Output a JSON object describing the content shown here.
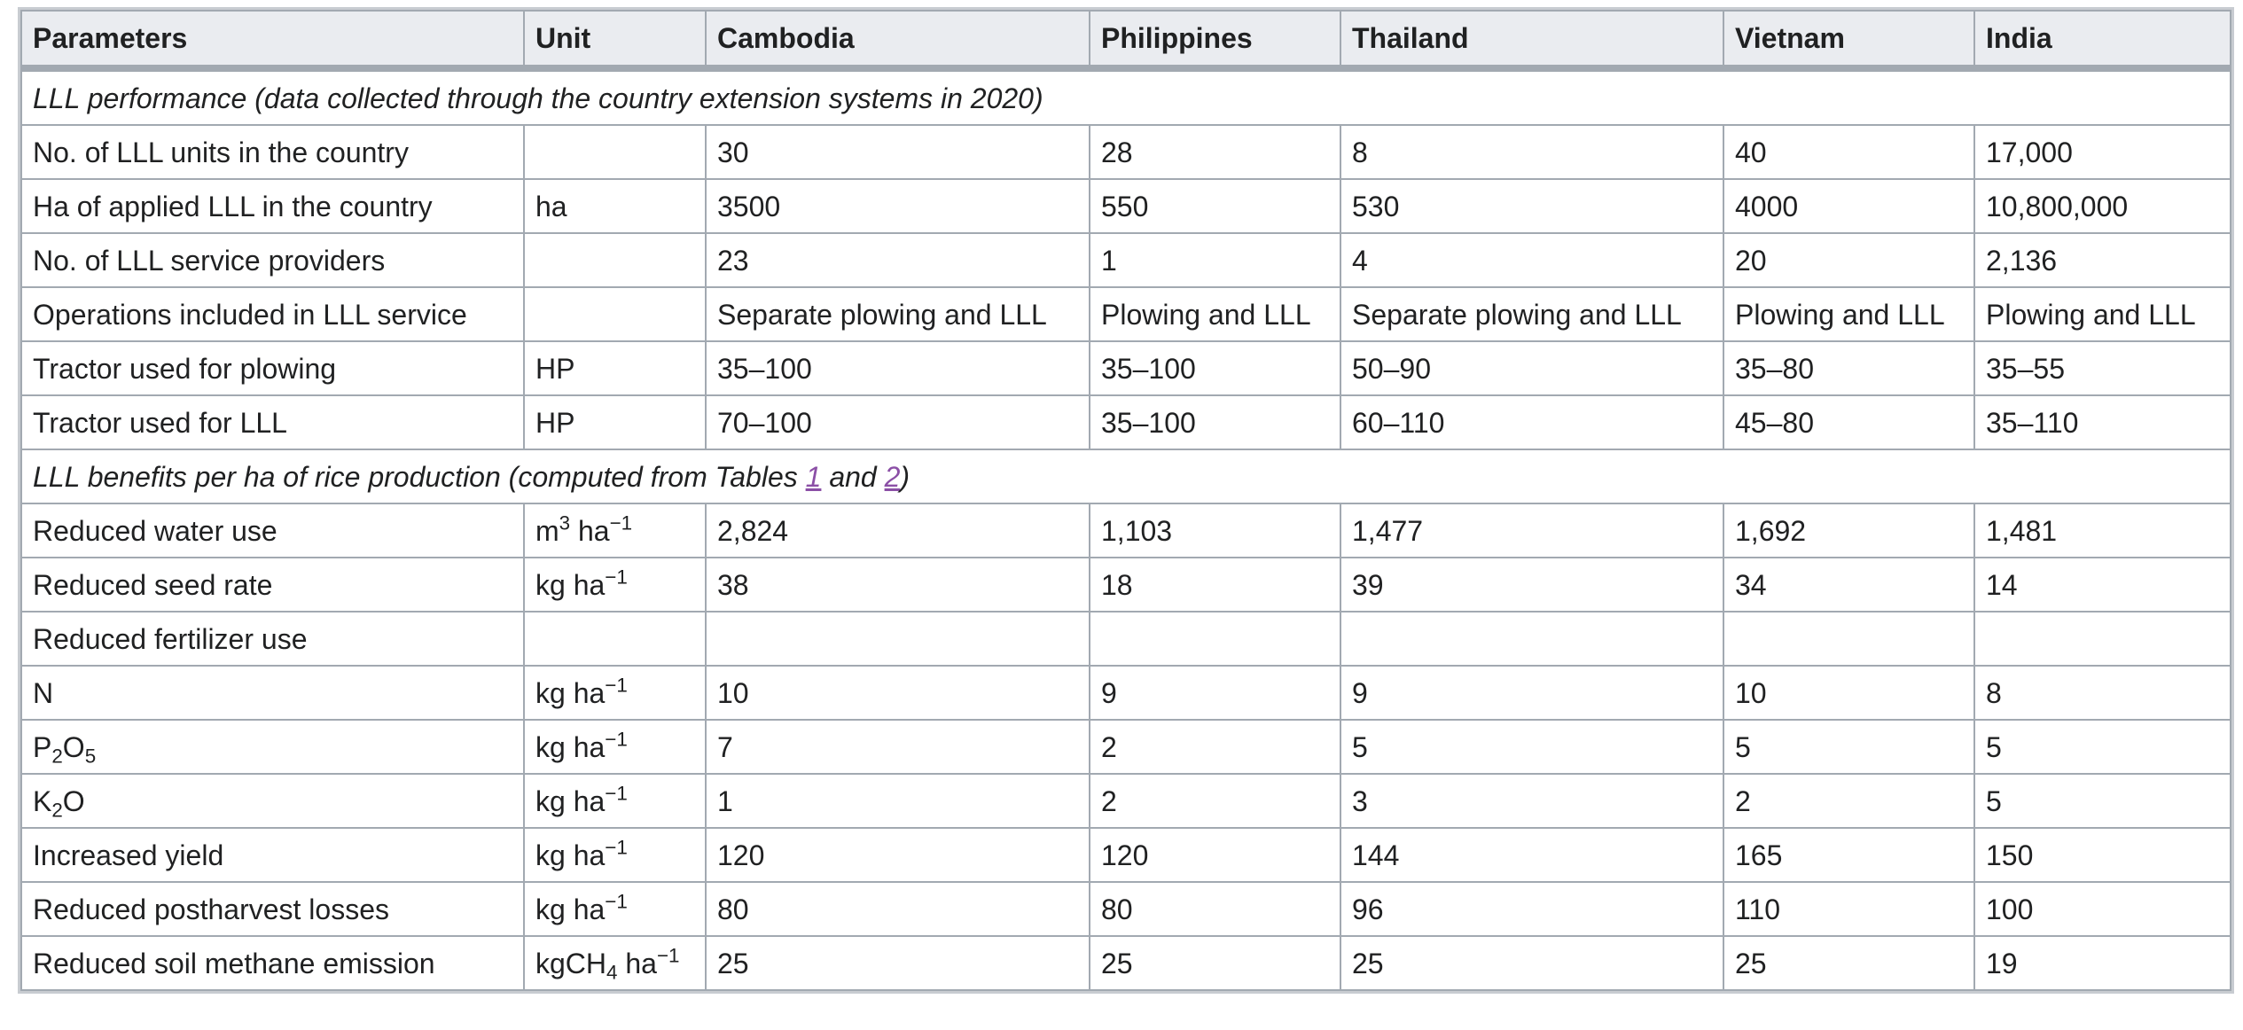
{
  "header": {
    "parameters": "Parameters",
    "unit": "Unit",
    "countries": [
      "Cambodia",
      "Philippines",
      "Thailand",
      "Vietnam",
      "India"
    ]
  },
  "section1": {
    "title": "LLL performance (data collected through the country extension systems in 2020)"
  },
  "section2": {
    "title_prefix": "LLL benefits per ha of rice production (computed from Tables ",
    "link1": "1",
    "and_text": " and ",
    "link2": "2",
    "title_suffix": ")"
  },
  "units": {
    "ha": "ha",
    "hp": "HP",
    "m3_base": "m",
    "m3_exp": "3",
    "ha_word": " ha",
    "neg1": "−1",
    "kg": "kg ha",
    "kgch4_base": "kgCH",
    "kgch4_sub": "4"
  },
  "rows": {
    "units_count": {
      "label": "No. of LLL units in the country",
      "values": [
        "30",
        "28",
        "8",
        "40",
        "17,000"
      ]
    },
    "ha_applied": {
      "label": "Ha of applied LLL in the country",
      "values": [
        "3500",
        "550",
        "530",
        "4000",
        "10,800,000"
      ]
    },
    "providers": {
      "label": "No. of LLL service providers",
      "values": [
        "23",
        "1",
        "4",
        "20",
        "2,136"
      ]
    },
    "operations": {
      "label": "Operations included in LLL service",
      "values": [
        "Separate plowing and LLL",
        "Plowing and LLL",
        "Separate plowing and LLL",
        "Plowing and LLL",
        "Plowing and LLL"
      ]
    },
    "tractor_plowing": {
      "label": "Tractor used for plowing",
      "values": [
        "35–100",
        "35–100",
        "50–90",
        "35–80",
        "35–55"
      ]
    },
    "tractor_lll": {
      "label": "Tractor used for LLL",
      "values": [
        "70–100",
        "35–100",
        "60–110",
        "45–80",
        "35–110"
      ]
    },
    "water": {
      "label": "Reduced water use",
      "values": [
        "2,824",
        "1,103",
        "1,477",
        "1,692",
        "1,481"
      ]
    },
    "seed": {
      "label": "Reduced seed rate",
      "values": [
        "38",
        "18",
        "39",
        "34",
        "14"
      ]
    },
    "fertilizer": {
      "label": "Reduced fertilizer use"
    },
    "n": {
      "label": "N",
      "values": [
        "10",
        "9",
        "9",
        "10",
        "8"
      ]
    },
    "p2o5": {
      "label_p": "P",
      "label_2": "2",
      "label_o": "O",
      "label_5": "5",
      "values": [
        "7",
        "2",
        "5",
        "5",
        "5"
      ]
    },
    "k2o": {
      "label_k": "K",
      "label_2": "2",
      "label_o": "O",
      "values": [
        "1",
        "2",
        "3",
        "2",
        "5"
      ]
    },
    "yield": {
      "label": "Increased yield",
      "values": [
        "120",
        "120",
        "144",
        "165",
        "150"
      ]
    },
    "postharvest": {
      "label": "Reduced postharvest losses",
      "values": [
        "80",
        "80",
        "96",
        "110",
        "100"
      ]
    },
    "methane": {
      "label": "Reduced soil methane emission",
      "values": [
        "25",
        "25",
        "25",
        "25",
        "19"
      ]
    }
  },
  "colors": {
    "header_bg": "#eaecf0",
    "border": "#a2a9b1",
    "link": "#8b4fa6"
  }
}
